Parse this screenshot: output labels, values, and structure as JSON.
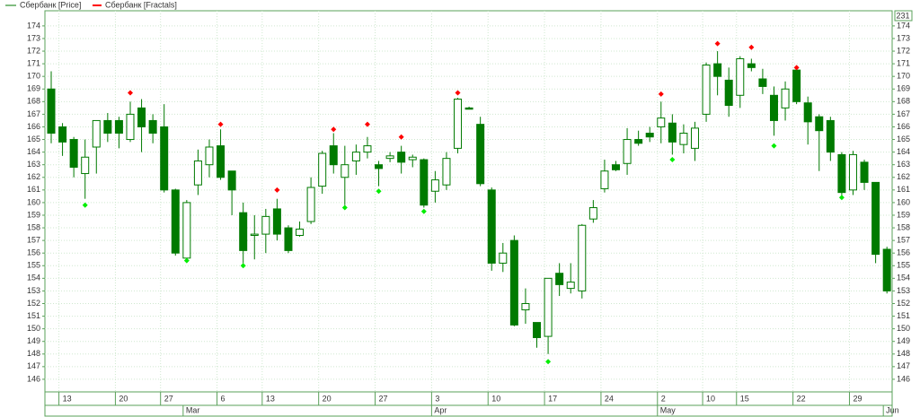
{
  "chart_data": {
    "type": "candlestick",
    "series": [
      {
        "name": "Сбербанк [Price]",
        "color": "#007a00",
        "open": [
          169,
          166,
          165,
          162.3,
          164.4,
          166.5,
          166.5,
          165,
          167.5,
          166.5,
          166,
          161,
          155.6,
          161.4,
          163,
          164.5,
          162.5,
          159.2,
          157.4,
          157.5,
          159.5,
          158,
          157.4,
          158.5,
          161.3,
          164.5,
          162,
          163.3,
          164,
          163,
          163.5,
          164,
          163.4,
          163.4,
          160.9,
          161.4,
          164.3,
          167.5,
          166.2,
          161,
          155.2,
          157,
          151.5,
          150.5,
          149.4,
          154.4,
          153.2,
          153,
          158.7,
          161.1,
          163,
          163.1,
          165,
          165.5,
          166,
          166.3,
          164.6,
          164.3,
          167,
          171,
          169.7,
          168.5,
          171,
          169.8,
          168.5,
          167.5,
          170.5,
          167.9,
          166.8,
          166.5,
          163.8,
          161,
          163.2,
          161.6,
          156.3
        ],
        "high": [
          170.4,
          166.3,
          165.2,
          165,
          166.5,
          167.1,
          166.8,
          168,
          168.2,
          167,
          167.8,
          161.1,
          160.2,
          164.2,
          165,
          165.8,
          162.5,
          160,
          159,
          159.5,
          160.3,
          158.2,
          158.5,
          162,
          164.1,
          165.5,
          164.5,
          164.6,
          165.2,
          163.3,
          164,
          164.5,
          163.8,
          163.5,
          162.5,
          164,
          168.3,
          167.6,
          166.8,
          161.2,
          156.8,
          157.4,
          153.2,
          150.5,
          154,
          155.2,
          155.2,
          158.3,
          160.2,
          163.4,
          163.3,
          165.9,
          165.7,
          166,
          168,
          167,
          166.2,
          166.4,
          171.1,
          172,
          170.7,
          171.6,
          171.4,
          170.6,
          169.2,
          169.6,
          170.8,
          168.4,
          167,
          166.8,
          164,
          164.1,
          163.4,
          161.6,
          156.5
        ],
        "low": [
          164.7,
          163.7,
          162,
          160.3,
          162.3,
          164.8,
          164.3,
          164.8,
          164,
          164.7,
          160.8,
          155.8,
          155.3,
          160.6,
          162,
          161.8,
          159,
          155.2,
          155.5,
          156,
          157,
          156,
          157.3,
          158.3,
          160.7,
          162.3,
          159.8,
          162.2,
          163.5,
          161.3,
          163.2,
          162.3,
          162.8,
          159.6,
          160,
          161,
          163.9,
          167.4,
          161.3,
          154.6,
          154.5,
          150.2,
          150.4,
          148.5,
          148,
          152.6,
          152.8,
          152.4,
          158.4,
          160.8,
          162.5,
          162.2,
          164.5,
          164.8,
          164.7,
          163.8,
          163.9,
          163.3,
          166.4,
          168.5,
          166.8,
          167.5,
          170.4,
          168.6,
          165.3,
          166.5,
          167.8,
          164.6,
          162.5,
          163.3,
          160.5,
          160.6,
          161,
          155.2,
          152.8
        ],
        "close": [
          165.5,
          164.8,
          162.8,
          163.6,
          166.5,
          165.5,
          165.5,
          167,
          166,
          165.5,
          161,
          156,
          160,
          163.3,
          164.4,
          162,
          161,
          156.2,
          157.5,
          158.9,
          157.5,
          156.2,
          157.9,
          161.2,
          163.9,
          163,
          163,
          164,
          164.5,
          162.7,
          163.7,
          163.2,
          163.6,
          159.8,
          161.8,
          163.5,
          168.2,
          167.4,
          161.5,
          155.2,
          156,
          150.3,
          152,
          149.3,
          154,
          153.5,
          153.7,
          158.2,
          159.6,
          162.5,
          162.6,
          165,
          164.7,
          165.2,
          166.7,
          164.8,
          165.5,
          165.9,
          170.9,
          170,
          167.7,
          171.4,
          170.7,
          169.2,
          166.5,
          169,
          168,
          166.4,
          165.7,
          164,
          160.8,
          163.8,
          161.6,
          155.9,
          153
        ]
      },
      {
        "name": "Сбербанк [Fractals]",
        "color": "#ff0000",
        "color_down": "#00ee00",
        "up": [
          null,
          null,
          null,
          null,
          null,
          null,
          null,
          168.7,
          null,
          null,
          null,
          null,
          null,
          null,
          null,
          166.2,
          null,
          null,
          null,
          null,
          161,
          null,
          null,
          null,
          null,
          165.8,
          null,
          null,
          166.2,
          null,
          null,
          165.2,
          null,
          null,
          null,
          null,
          168.7,
          null,
          null,
          null,
          null,
          null,
          null,
          null,
          null,
          null,
          null,
          null,
          null,
          null,
          null,
          null,
          null,
          null,
          168.6,
          null,
          null,
          null,
          null,
          172.6,
          null,
          null,
          172.3,
          null,
          null,
          null,
          170.7,
          null,
          null,
          null,
          null,
          null,
          null,
          null,
          null
        ],
        "down": [
          null,
          null,
          null,
          159.8,
          null,
          null,
          null,
          null,
          null,
          null,
          null,
          null,
          155.4,
          null,
          null,
          null,
          null,
          155,
          null,
          null,
          null,
          null,
          null,
          null,
          null,
          null,
          159.6,
          null,
          null,
          160.9,
          null,
          null,
          null,
          159.3,
          null,
          null,
          null,
          null,
          null,
          null,
          null,
          null,
          null,
          null,
          147.4,
          null,
          null,
          null,
          null,
          null,
          null,
          null,
          null,
          null,
          null,
          163.4,
          null,
          null,
          null,
          null,
          null,
          null,
          null,
          null,
          164.5,
          null,
          null,
          null,
          null,
          null,
          160.4,
          null,
          null,
          null,
          null
        ]
      }
    ],
    "ylim": [
      145,
      175.2
    ],
    "yticks": [
      146,
      147,
      148,
      149,
      150,
      151,
      152,
      153,
      154,
      155,
      156,
      157,
      158,
      159,
      160,
      161,
      162,
      163,
      164,
      165,
      166,
      167,
      168,
      169,
      170,
      171,
      172,
      173,
      174
    ],
    "xticks": [
      {
        "value": 1,
        "label": "13"
      },
      {
        "value": 6,
        "label": "20"
      },
      {
        "value": 10,
        "label": "27"
      },
      {
        "value": 15,
        "label": "6"
      },
      {
        "value": 19,
        "label": "13"
      },
      {
        "value": 24,
        "label": "20"
      },
      {
        "value": 29,
        "label": "27"
      },
      {
        "value": 34,
        "label": "3"
      },
      {
        "value": 39,
        "label": "10"
      },
      {
        "value": 44,
        "label": "17"
      },
      {
        "value": 49,
        "label": "24"
      },
      {
        "value": 54,
        "label": "2"
      },
      {
        "value": 58,
        "label": "10"
      },
      {
        "value": 61,
        "label": "15"
      },
      {
        "value": 66,
        "label": "22"
      },
      {
        "value": 71,
        "label": "29"
      }
    ],
    "month_ticks": [
      {
        "value": 12,
        "label": "Mar"
      },
      {
        "value": 34,
        "label": "Apr"
      },
      {
        "value": 54,
        "label": "May"
      },
      {
        "value": 74,
        "label": "Jun"
      }
    ],
    "badge": "231",
    "grid": true
  }
}
